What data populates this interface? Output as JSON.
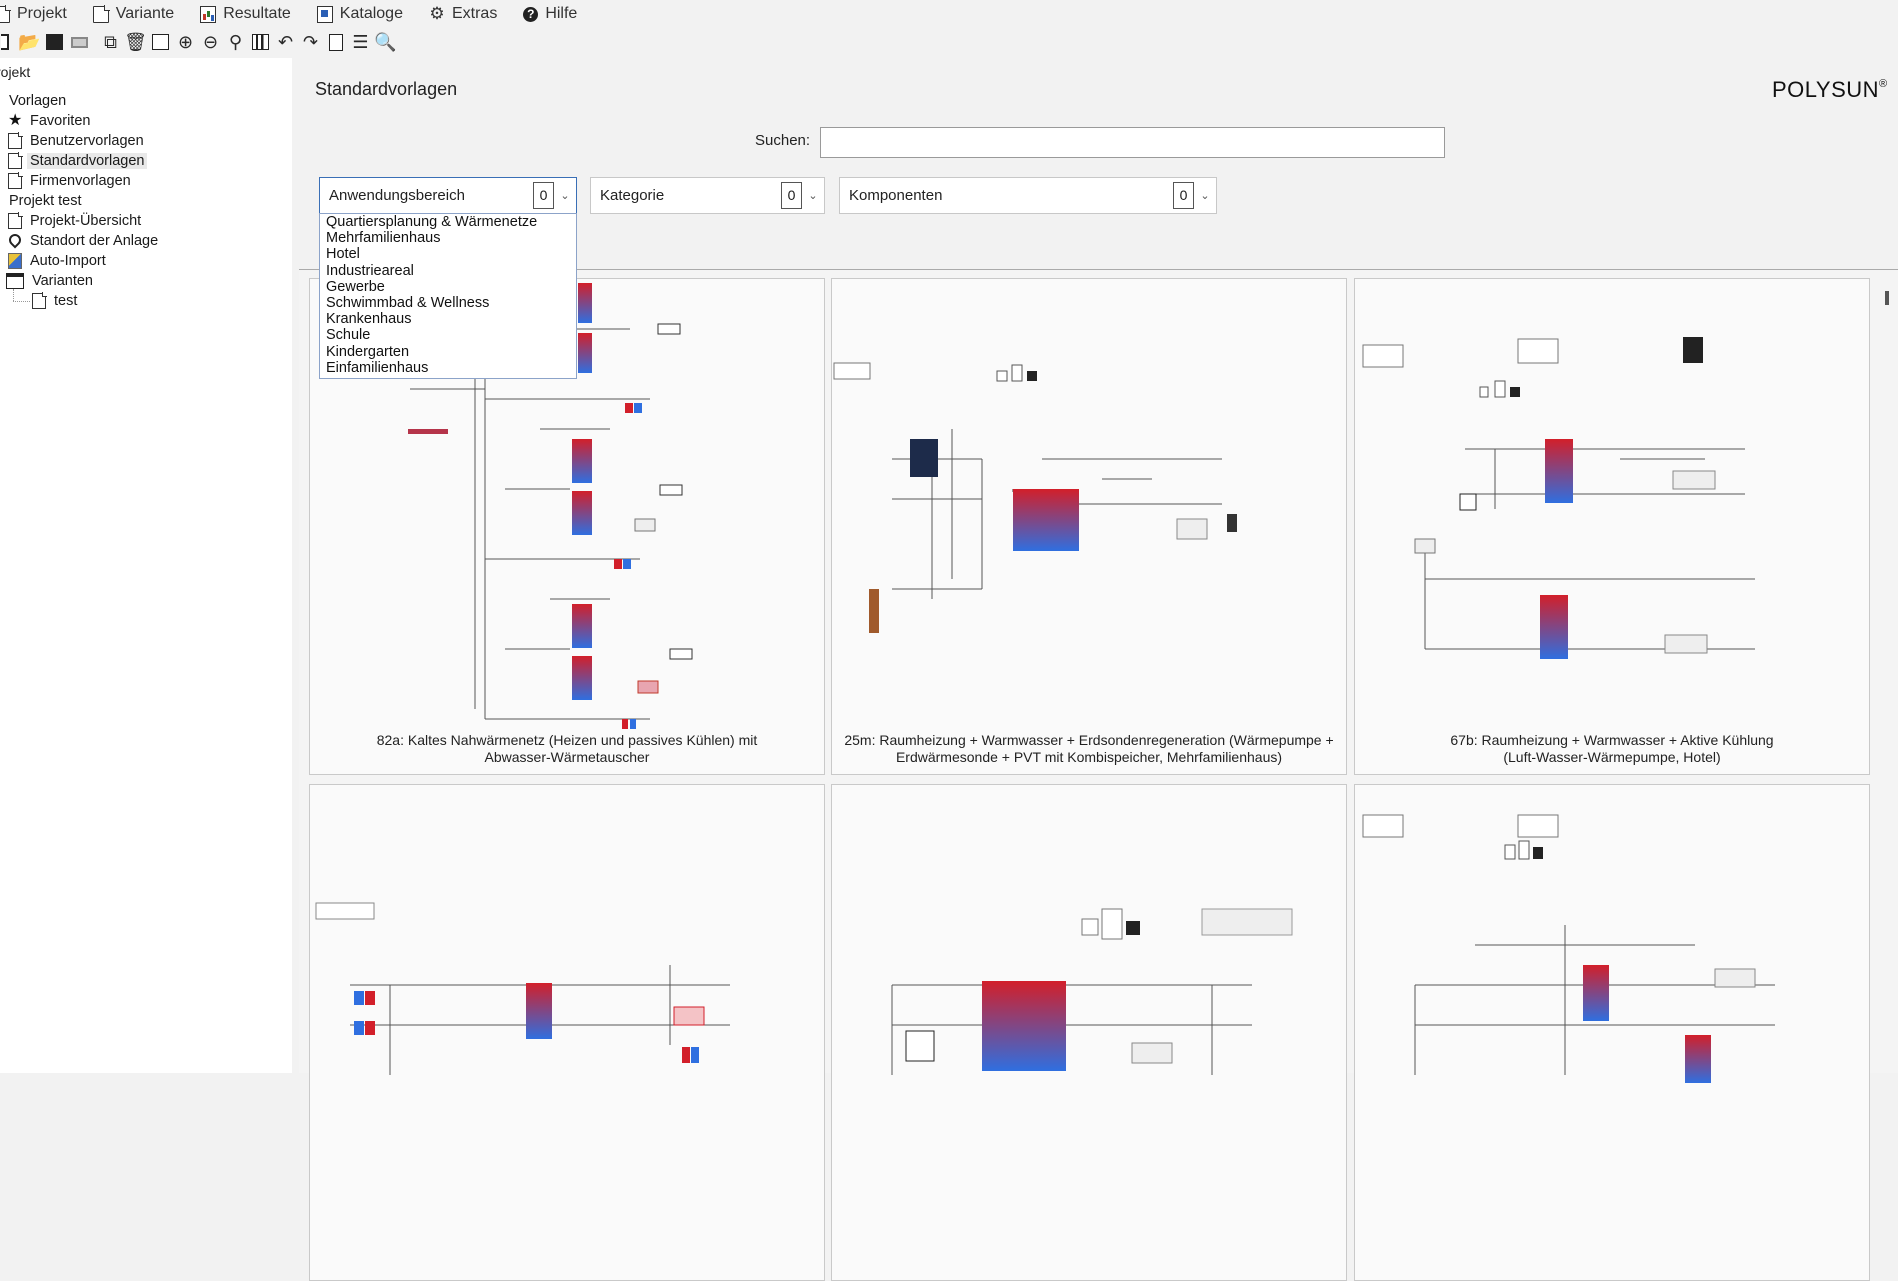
{
  "menu": [
    {
      "label": "Projekt",
      "icon": "document-icon"
    },
    {
      "label": "Variante",
      "icon": "document-icon"
    },
    {
      "label": "Resultate",
      "icon": "results-icon"
    },
    {
      "label": "Kataloge",
      "icon": "catalog-icon"
    },
    {
      "label": "Extras",
      "icon": "gear-icon"
    },
    {
      "label": "Hilfe",
      "icon": "help-icon"
    }
  ],
  "toolbar": {
    "icons": [
      "new-icon",
      "open-folder-icon",
      "save-icon",
      "save-as-icon",
      "copy-icon",
      "delete-icon",
      "image-icon",
      "zoom-in-icon",
      "zoom-out-icon",
      "zoom-fit-icon",
      "bar-chart-icon",
      "undo-icon",
      "redo-icon",
      "bim-icon",
      "align-icon",
      "search-zoom-icon"
    ]
  },
  "tree": {
    "tab_label": "rojekt",
    "vorlagen": "Vorlagen",
    "favoriten": "Favoriten",
    "benutzervorlagen": "Benutzervorlagen",
    "standardvorlagen": "Standardvorlagen",
    "firmenvorlagen": "Firmenvorlagen",
    "projekt": "Projekt test",
    "uebersicht": "Projekt-Übersicht",
    "standort": "Standort der Anlage",
    "autoimport": "Auto-Import",
    "varianten": "Varianten",
    "variante_test": "test"
  },
  "header": {
    "title": "Standardvorlagen",
    "brand": "POLYSUN",
    "brand_mark": "®"
  },
  "search": {
    "label": "Suchen:",
    "value": "",
    "placeholder": ""
  },
  "filters": {
    "anwendungsbereich": {
      "label": "Anwendungsbereich",
      "count": "0"
    },
    "kategorie": {
      "label": "Kategorie",
      "count": "0"
    },
    "komponenten": {
      "label": "Komponenten",
      "count": "0"
    }
  },
  "dropdown_options": [
    "Quartiersplanung & Wärmenetze",
    "Mehrfamilienhaus",
    "Hotel",
    "Industrieareal",
    "Gewerbe",
    "Schwimmbad & Wellness",
    "Krankenhaus",
    "Schule",
    "Kindergarten",
    "Einfamilienhaus"
  ],
  "cards": [
    {
      "line1": "82a: Kaltes Nahwärmenetz (Heizen und passives Kühlen) mit",
      "line2": "Abwasser-Wärmetauscher"
    },
    {
      "line1": "25m: Raumheizung + Warmwasser + Erdsondenregeneration (Wärmepumpe +",
      "line2": "Erdwärmesonde + PVT mit Kombispeicher, Mehrfamilienhaus)"
    },
    {
      "line1": "67b: Raumheizung + Warmwasser + Aktive Kühlung",
      "line2": "(Luft-Wasser-Wärmepumpe, Hotel)"
    },
    {
      "line1": "",
      "line2": ""
    },
    {
      "line1": "",
      "line2": ""
    },
    {
      "line1": "",
      "line2": ""
    }
  ],
  "colors": {
    "tank_hot": "#d21f2a",
    "tank_cold": "#2f6fe0",
    "accent": "#3a6fb6"
  }
}
